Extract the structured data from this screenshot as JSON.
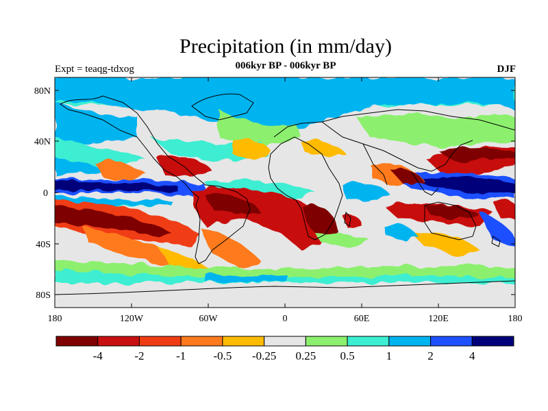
{
  "title": "Precipitation (in mm/day)",
  "subtitle": "006kyr BP - 006kyr BP",
  "left_label": "Expt = teaqg-tdxog",
  "right_label": "DJF",
  "axes": {
    "lat_ticks": [
      "80N",
      "40N",
      "0",
      "40S",
      "80S"
    ],
    "lon_ticks": [
      "180",
      "120W",
      "60W",
      "0",
      "60E",
      "120E",
      "180"
    ]
  },
  "colorbar": {
    "colors": [
      "#7f0000",
      "#c81010",
      "#f03c14",
      "#ff7a1e",
      "#ffbb00",
      "#e6e6e6",
      "#8cf06e",
      "#3ceed2",
      "#00b4f0",
      "#1e50ff",
      "#00007a"
    ],
    "labels": [
      "-4",
      "-2",
      "-1",
      "-0.5",
      "-0.25",
      "0.25",
      "0.5",
      "1",
      "2",
      "4"
    ]
  }
}
